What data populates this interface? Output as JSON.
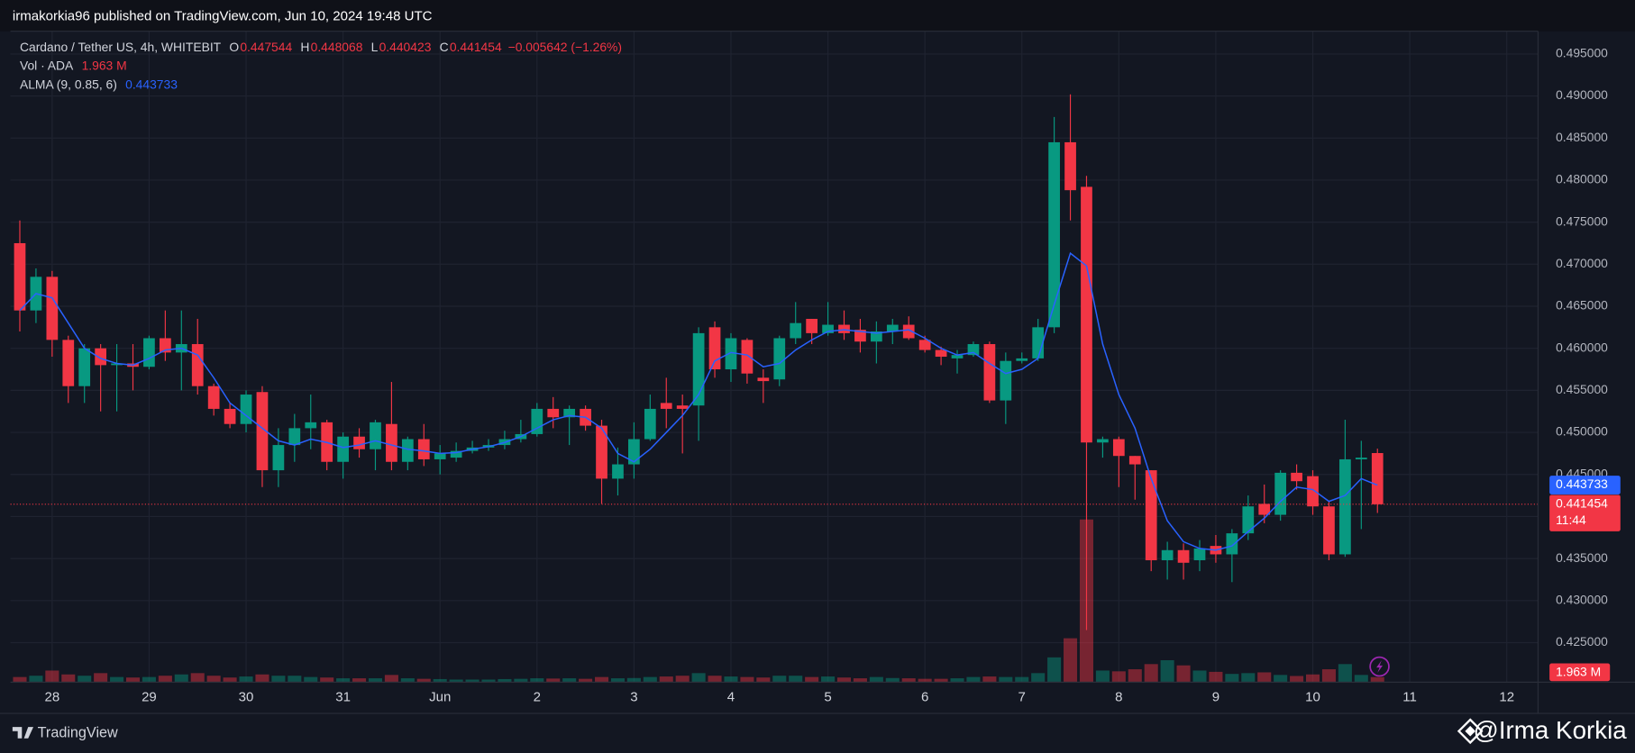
{
  "header": {
    "byline": "irmakorkia96 published on TradingView.com, Jun 10, 2024 19:48 UTC"
  },
  "footer": {
    "brand": "TradingView",
    "watermark": "@Irma Korkia"
  },
  "chart_data": {
    "type": "candlestick",
    "title": "Cardano / Tether US, 4h, WHITEBIT",
    "ohlc_labels": [
      "O",
      "H",
      "L",
      "C"
    ],
    "change_label": "−0.005642 (−1.26%)",
    "countdown": "11:44",
    "grid": true,
    "categories": [
      null,
      null,
      "28",
      null,
      null,
      null,
      null,
      null,
      "29",
      null,
      null,
      null,
      null,
      null,
      "30",
      null,
      null,
      null,
      null,
      null,
      "31",
      null,
      null,
      null,
      null,
      null,
      "Jun",
      null,
      null,
      null,
      null,
      null,
      "2",
      null,
      null,
      null,
      null,
      null,
      "3",
      null,
      null,
      null,
      null,
      null,
      "4",
      null,
      null,
      null,
      null,
      null,
      "5",
      null,
      null,
      null,
      null,
      null,
      "6",
      null,
      null,
      null,
      null,
      null,
      "7",
      null,
      null,
      null,
      null,
      null,
      "8",
      null,
      null,
      null,
      null,
      null,
      "9",
      null,
      null,
      null,
      null,
      null,
      "10",
      null,
      null,
      null,
      null,
      null,
      "11",
      null,
      null,
      null,
      null,
      null,
      "12",
      null
    ],
    "candles": {
      "up_color": "#089981",
      "down_color": "#f23645",
      "open": [
        0.4725,
        0.4645,
        0.4685,
        0.461,
        0.4555,
        0.46,
        0.458,
        0.4582,
        0.4578,
        0.4612,
        0.4595,
        0.4605,
        0.4555,
        0.4528,
        0.451,
        0.4548,
        0.4455,
        0.4485,
        0.4505,
        0.4512,
        0.4465,
        0.4495,
        0.448,
        0.451,
        0.4465,
        0.4492,
        0.4468,
        0.447,
        0.4478,
        0.4482,
        0.4485,
        0.4492,
        0.4498,
        0.4528,
        0.4518,
        0.4528,
        0.4508,
        0.4445,
        0.4462,
        0.4492,
        0.4535,
        0.4532,
        0.4532,
        0.4625,
        0.4575,
        0.461,
        0.4565,
        0.4563,
        0.4612,
        0.4635,
        0.4618,
        0.4628,
        0.4622,
        0.4608,
        0.462,
        0.4628,
        0.461,
        0.4598,
        0.4588,
        0.4592,
        0.4605,
        0.4538,
        0.4585,
        0.4588,
        0.4625,
        0.4845,
        0.4792,
        0.4488,
        0.4492,
        0.4472,
        0.4455,
        0.4348,
        0.436,
        0.4348,
        0.4365,
        0.4355,
        0.438,
        0.4415,
        0.4402,
        0.4452,
        0.4448,
        0.4412,
        0.4355,
        0.4468,
        0.447544,
        null,
        null,
        null,
        null,
        null,
        null,
        null,
        null,
        null
      ],
      "high": [
        0.4752,
        0.4695,
        0.4692,
        0.4615,
        0.4605,
        0.4605,
        0.4605,
        0.4605,
        0.4615,
        0.4645,
        0.4645,
        0.4635,
        0.4558,
        0.4535,
        0.455,
        0.4555,
        0.4505,
        0.4522,
        0.4545,
        0.4515,
        0.45,
        0.4505,
        0.4515,
        0.456,
        0.4495,
        0.451,
        0.4485,
        0.4488,
        0.449,
        0.4492,
        0.4502,
        0.4515,
        0.4535,
        0.4542,
        0.4532,
        0.4532,
        0.4515,
        0.4482,
        0.4512,
        0.4545,
        0.4565,
        0.4545,
        0.4625,
        0.4632,
        0.4618,
        0.4612,
        0.4575,
        0.4615,
        0.4655,
        0.4635,
        0.4655,
        0.4645,
        0.4635,
        0.4632,
        0.4635,
        0.4638,
        0.4615,
        0.4602,
        0.4598,
        0.4608,
        0.4608,
        0.4595,
        0.4595,
        0.4635,
        0.4875,
        0.4902,
        0.4805,
        0.4495,
        0.4495,
        0.4472,
        0.4455,
        0.437,
        0.4368,
        0.4372,
        0.4378,
        0.4385,
        0.4425,
        0.4438,
        0.4455,
        0.4462,
        0.4455,
        0.4418,
        0.4515,
        0.449,
        0.448068,
        null,
        null,
        null,
        null,
        null,
        null,
        null,
        null,
        null
      ],
      "low": [
        0.462,
        0.463,
        0.459,
        0.4535,
        0.4535,
        0.4525,
        0.4525,
        0.455,
        0.4575,
        0.4585,
        0.455,
        0.4545,
        0.452,
        0.4505,
        0.45,
        0.4435,
        0.4435,
        0.4465,
        0.448,
        0.4455,
        0.4445,
        0.447,
        0.4455,
        0.4455,
        0.4455,
        0.446,
        0.445,
        0.4465,
        0.4475,
        0.4478,
        0.448,
        0.4488,
        0.4495,
        0.4505,
        0.4485,
        0.4502,
        0.4415,
        0.4425,
        0.4445,
        0.449,
        0.4505,
        0.4475,
        0.449,
        0.4565,
        0.456,
        0.4558,
        0.4535,
        0.4555,
        0.4605,
        0.4605,
        0.4615,
        0.461,
        0.4595,
        0.4582,
        0.4605,
        0.461,
        0.4595,
        0.458,
        0.457,
        0.459,
        0.4535,
        0.451,
        0.4582,
        0.4585,
        0.4618,
        0.4752,
        0.4265,
        0.447,
        0.4435,
        0.442,
        0.4335,
        0.4325,
        0.4325,
        0.4335,
        0.4345,
        0.4322,
        0.4372,
        0.4392,
        0.4395,
        0.4432,
        0.4402,
        0.4348,
        0.4352,
        0.4385,
        0.440423,
        null,
        null,
        null,
        null,
        null,
        null,
        null,
        null,
        null
      ],
      "close": [
        0.4645,
        0.4685,
        0.461,
        0.4555,
        0.46,
        0.458,
        0.4582,
        0.4578,
        0.4612,
        0.4595,
        0.4605,
        0.4555,
        0.4528,
        0.451,
        0.4545,
        0.4455,
        0.4485,
        0.4505,
        0.4512,
        0.4465,
        0.4495,
        0.448,
        0.4512,
        0.4465,
        0.4492,
        0.4468,
        0.4475,
        0.4478,
        0.4482,
        0.4485,
        0.4492,
        0.4498,
        0.4528,
        0.4518,
        0.4528,
        0.4508,
        0.4445,
        0.4462,
        0.4492,
        0.4528,
        0.4528,
        0.4528,
        0.4618,
        0.4575,
        0.4612,
        0.457,
        0.4561,
        0.4612,
        0.463,
        0.4618,
        0.4628,
        0.4618,
        0.4608,
        0.462,
        0.4628,
        0.4612,
        0.4598,
        0.459,
        0.4592,
        0.4605,
        0.4538,
        0.4585,
        0.4588,
        0.4625,
        0.4845,
        0.4788,
        0.4488,
        0.4492,
        0.4472,
        0.4462,
        0.4348,
        0.436,
        0.4345,
        0.4362,
        0.4355,
        0.438,
        0.4412,
        0.4402,
        0.4452,
        0.4442,
        0.4412,
        0.4355,
        0.4468,
        0.447,
        0.441454,
        null,
        null,
        null,
        null,
        null,
        null,
        null,
        null,
        null
      ]
    },
    "volume": {
      "name": "Vol · ADA",
      "last_label": "1.963 M",
      "values": [
        2,
        2.5,
        4.5,
        3,
        2.5,
        3.5,
        2,
        1.8,
        2,
        2.5,
        3,
        3.5,
        2.5,
        1.8,
        2.2,
        3,
        2.5,
        2.5,
        2,
        1.8,
        1.5,
        1.5,
        1.5,
        2.8,
        1.5,
        1.3,
        1.2,
        1,
        1,
        1,
        1.2,
        1.3,
        1.5,
        1.4,
        1.5,
        1.3,
        2,
        1.5,
        1.6,
        2,
        2.2,
        2.5,
        3.5,
        2.5,
        2.2,
        2,
        1.8,
        2.5,
        2.5,
        2,
        2.2,
        1.8,
        1.5,
        2,
        1.6,
        1.5,
        1.3,
        1.3,
        1.5,
        2,
        2.2,
        2,
        2,
        3.5,
        9.6,
        17,
        63,
        4.5,
        4.2,
        5,
        7,
        8.5,
        6.5,
        4.5,
        4,
        3.2,
        3.5,
        3.8,
        2.8,
        2.4,
        3,
        5,
        7,
        2.8,
        1.963,
        null,
        null,
        null,
        null,
        null,
        null,
        null,
        null,
        null
      ]
    },
    "alma": {
      "name": "ALMA (9, 0.85, 6)",
      "color": "#2962ff",
      "values": [
        0.4645,
        0.4665,
        0.466,
        0.463,
        0.46,
        0.4588,
        0.4582,
        0.458,
        0.4588,
        0.4598,
        0.46,
        0.4592,
        0.4565,
        0.4535,
        0.452,
        0.4505,
        0.449,
        0.4485,
        0.4492,
        0.4488,
        0.4482,
        0.4485,
        0.449,
        0.4485,
        0.448,
        0.4478,
        0.4475,
        0.4476,
        0.448,
        0.4483,
        0.4488,
        0.4495,
        0.4505,
        0.4515,
        0.452,
        0.4518,
        0.4505,
        0.4475,
        0.4465,
        0.448,
        0.45,
        0.452,
        0.4545,
        0.4585,
        0.4595,
        0.4592,
        0.4578,
        0.4582,
        0.4598,
        0.461,
        0.462,
        0.4622,
        0.462,
        0.4618,
        0.462,
        0.4622,
        0.4612,
        0.46,
        0.4592,
        0.4595,
        0.4582,
        0.457,
        0.4575,
        0.4588,
        0.4652,
        0.4713,
        0.4698,
        0.4605,
        0.4545,
        0.4505,
        0.4445,
        0.4395,
        0.437,
        0.4362,
        0.436,
        0.4365,
        0.4382,
        0.4398,
        0.4418,
        0.4435,
        0.4432,
        0.4418,
        0.4425,
        0.4445,
        0.443733,
        null,
        null,
        null,
        null,
        null,
        null,
        null,
        null,
        null
      ]
    },
    "ylim": [
      0.4203,
      0.4977
    ],
    "yticks": [
      {
        "value": 0.425,
        "label": "0.425000"
      },
      {
        "value": 0.43,
        "label": "0.430000"
      },
      {
        "value": 0.435,
        "label": "0.435000"
      },
      {
        "value": 0.44,
        "label": "0.440000"
      },
      {
        "value": 0.445,
        "label": "0.445000"
      },
      {
        "value": 0.45,
        "label": "0.450000"
      },
      {
        "value": 0.455,
        "label": "0.455000"
      },
      {
        "value": 0.46,
        "label": "0.460000"
      },
      {
        "value": 0.465,
        "label": "0.465000"
      },
      {
        "value": 0.47,
        "label": "0.470000"
      },
      {
        "value": 0.475,
        "label": "0.475000"
      },
      {
        "value": 0.48,
        "label": "0.480000"
      },
      {
        "value": 0.485,
        "label": "0.485000"
      },
      {
        "value": 0.49,
        "label": "0.490000"
      },
      {
        "value": 0.495,
        "label": "0.495000"
      }
    ]
  }
}
